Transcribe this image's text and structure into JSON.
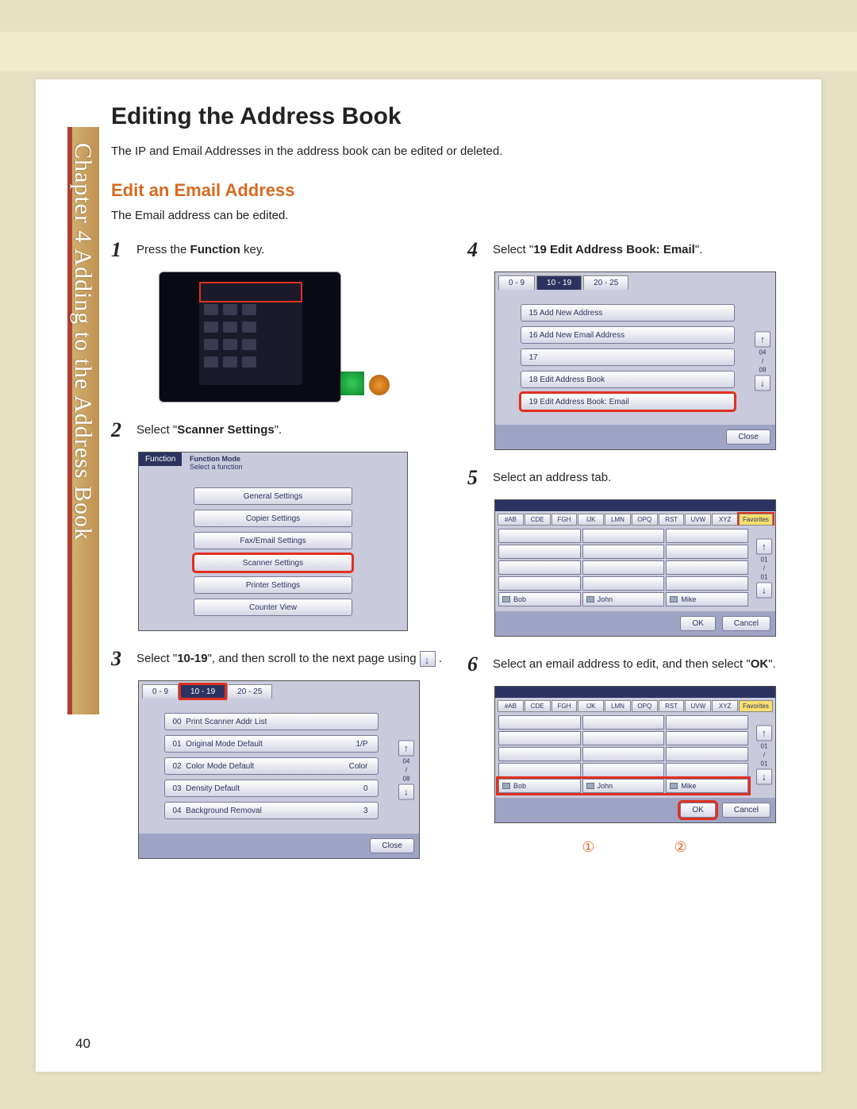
{
  "chapter_label": "Chapter 4  Adding to the Address Book",
  "title": "Editing the Address Book",
  "intro": "The IP and Email Addresses in the address book can be edited or deleted.",
  "section": "Edit an Email Address",
  "section_intro": "The Email address can be edited.",
  "steps": {
    "s1": {
      "num": "1",
      "pre": "Press the ",
      "bold": "Function",
      "post": " key."
    },
    "s2": {
      "num": "2",
      "pre": "Select \"",
      "bold": "Scanner Settings",
      "post": "\"."
    },
    "s3": {
      "num": "3",
      "pre": "Select \"",
      "bold": "10-19",
      "post": "\", and then scroll to the next page using "
    },
    "s4": {
      "num": "4",
      "pre": "Select \"",
      "bold": "19 Edit Address Book: Email",
      "post": "\"."
    },
    "s5": {
      "num": "5",
      "text": "Select an address tab."
    },
    "s6": {
      "num": "6",
      "text": "Select an email address to edit, and then select \"",
      "bold": "OK",
      "post": "\"."
    }
  },
  "shot2": {
    "badge": "Function",
    "header": "Function Mode",
    "sub": "Select a function",
    "items": [
      "General Settings",
      "Copier Settings",
      "Fax/Email Settings",
      "Scanner Settings",
      "Printer Settings",
      "Counter View"
    ],
    "hl": 3
  },
  "shot3": {
    "tabs": [
      "0 - 9",
      "10 - 19",
      "20 - 25"
    ],
    "items": [
      [
        "00",
        "Print Scanner Addr List",
        ""
      ],
      [
        "01",
        "Original Mode Default",
        "1/P"
      ],
      [
        "02",
        "Color Mode Default",
        "Color"
      ],
      [
        "03",
        "Density Default",
        "0"
      ],
      [
        "04",
        "Background Removal",
        "3"
      ]
    ],
    "close": "Close",
    "scroll": [
      "04",
      "/",
      "08"
    ]
  },
  "shot4": {
    "tabs": [
      "0 - 9",
      "10 - 19",
      "20 - 25"
    ],
    "items": [
      "15  Add New Address",
      "16  Add New Email Address",
      "17",
      "18  Edit Address Book",
      "19  Edit Address Book: Email"
    ],
    "hl": 4,
    "close": "Close",
    "scroll": [
      "04",
      "/",
      "08"
    ]
  },
  "shot5": {
    "alpha": [
      "#AB",
      "CDE",
      "FGH",
      "IJK",
      "LMN",
      "OPQ",
      "RST",
      "UVW",
      "XYZ",
      "Favorites"
    ],
    "names": [
      "Bob",
      "John",
      "Mike"
    ],
    "ok": "OK",
    "cancel": "Cancel",
    "scroll": [
      "01",
      "/",
      "01"
    ]
  },
  "shot6": {
    "alpha": [
      "#AB",
      "CDE",
      "FGH",
      "IJK",
      "LMN",
      "OPQ",
      "RST",
      "UVW",
      "XYZ",
      "Favorites"
    ],
    "names": [
      "Bob",
      "John",
      "Mike"
    ],
    "ok": "OK",
    "cancel": "Cancel",
    "scroll": [
      "01",
      "/",
      "01"
    ]
  },
  "markers": [
    "①",
    "②"
  ],
  "page_num": "40"
}
